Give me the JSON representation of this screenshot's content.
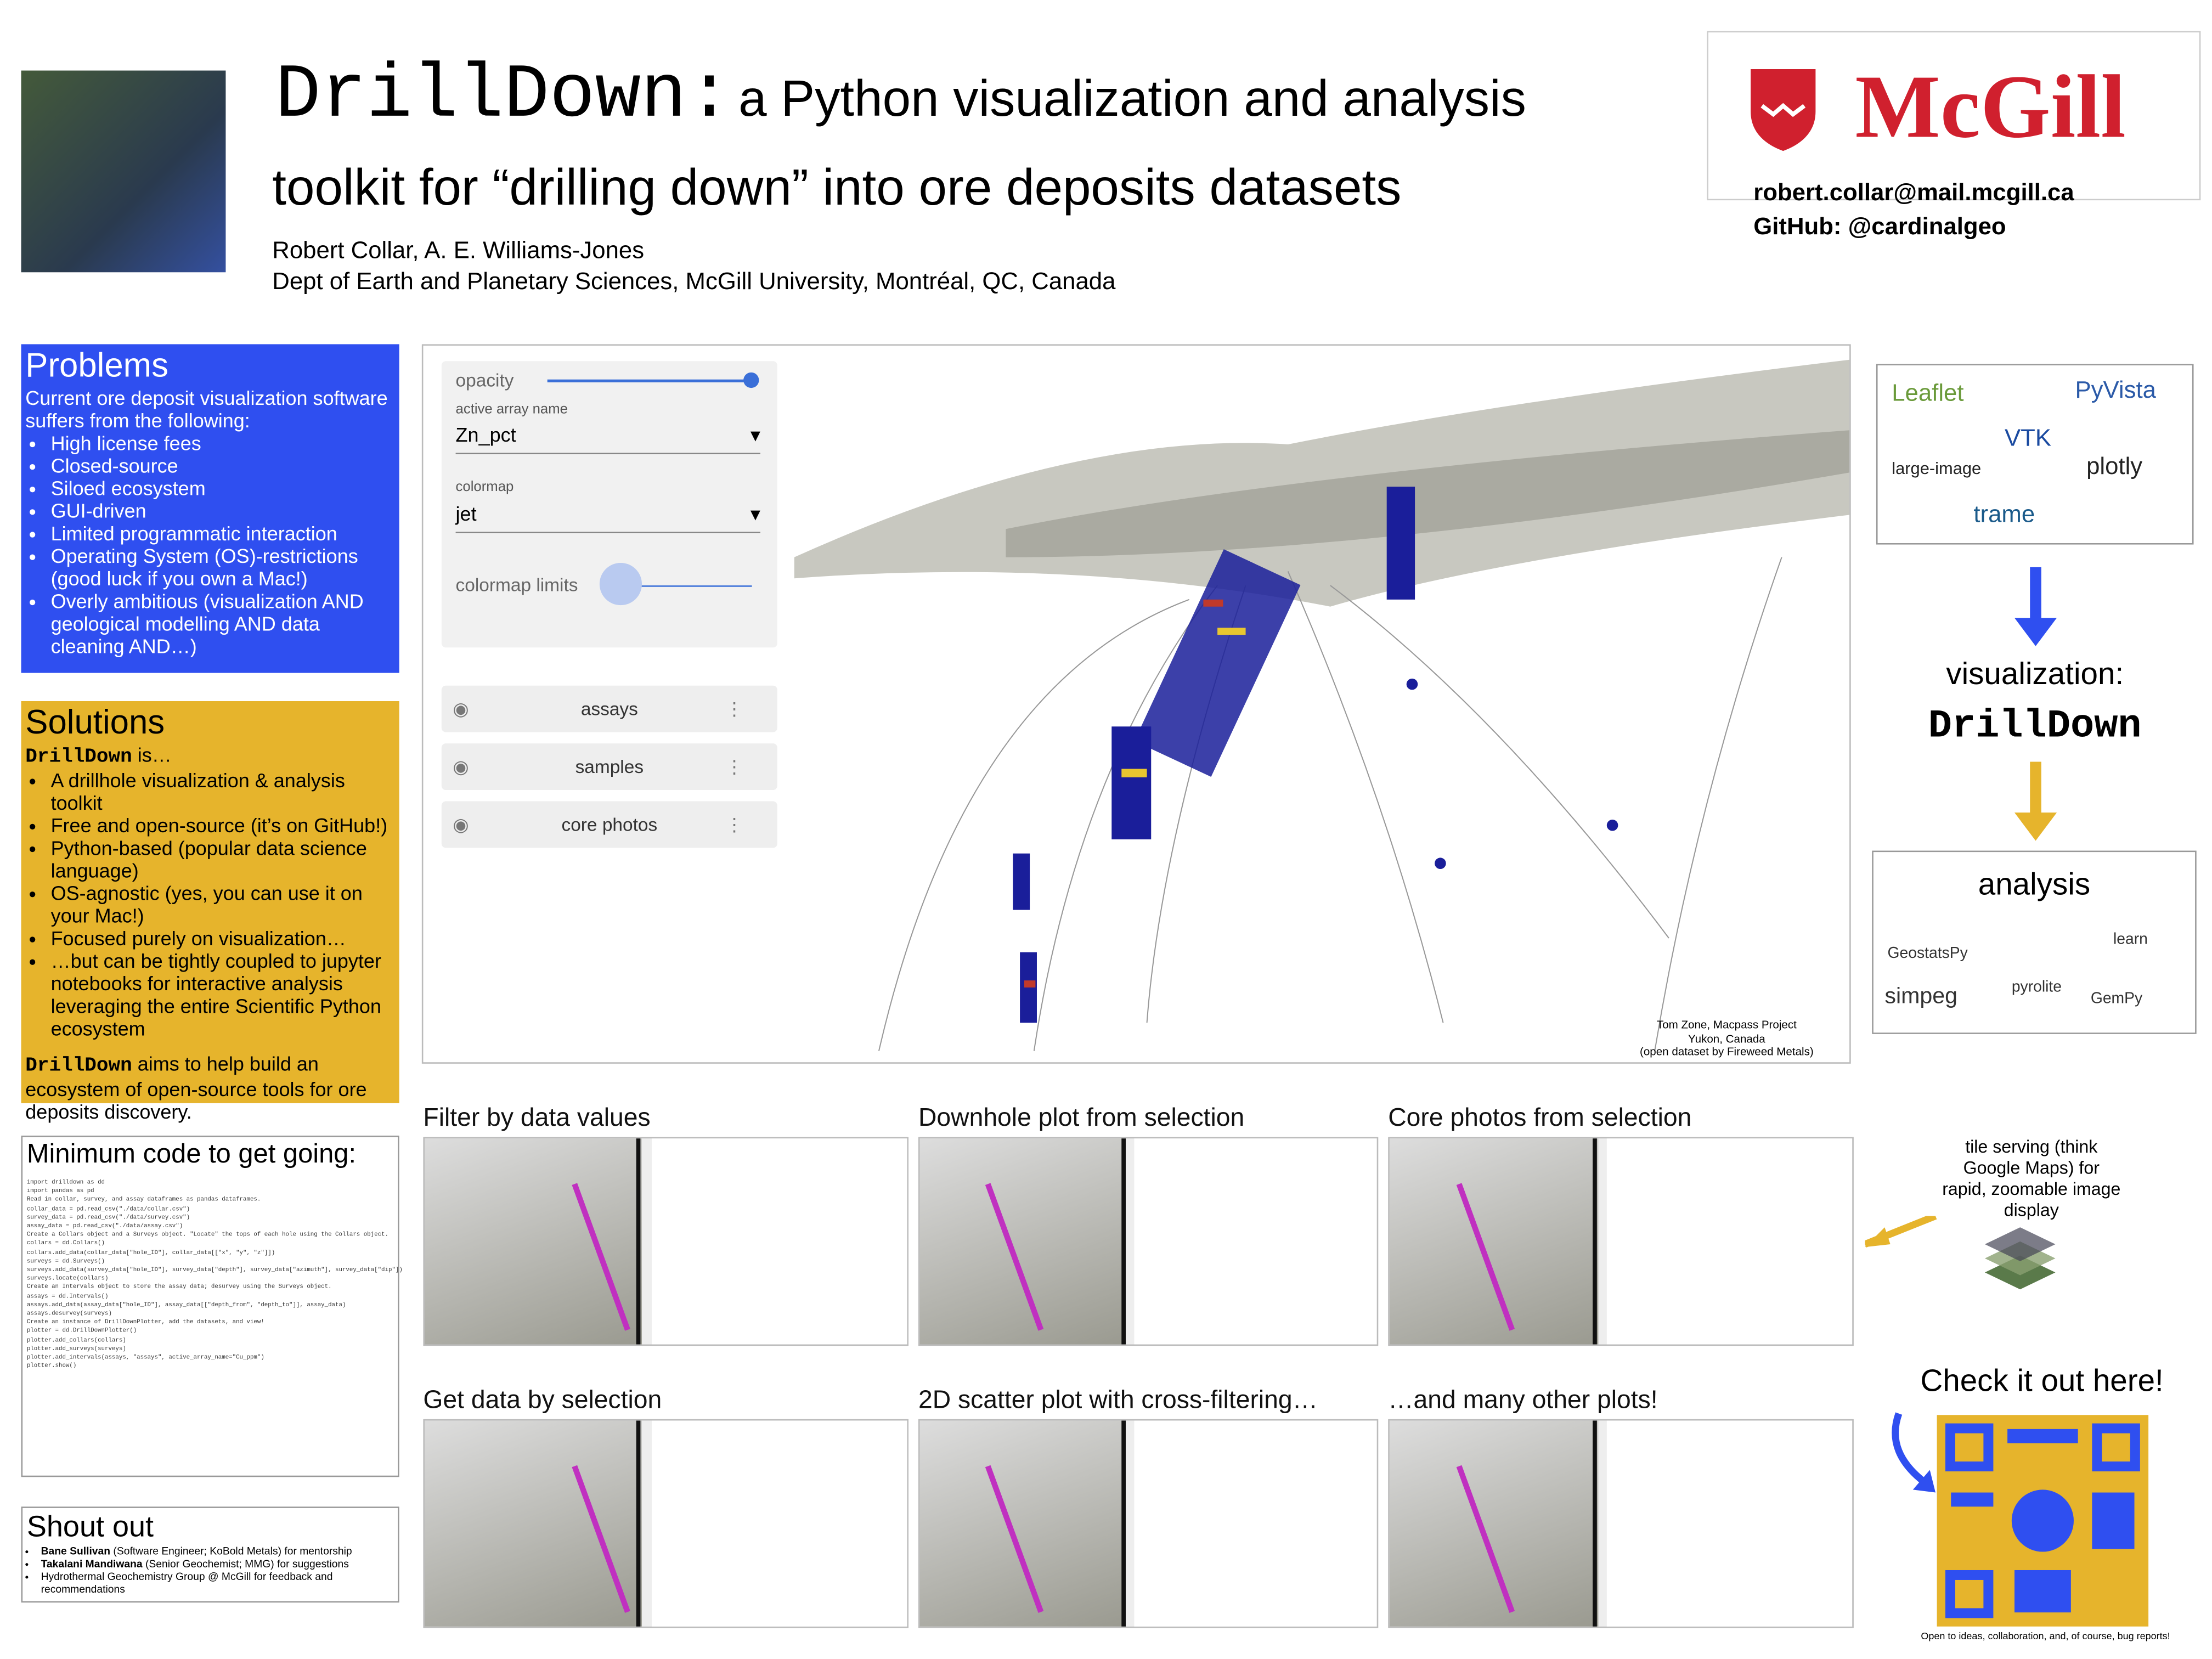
{
  "header": {
    "title_mono": "DrillDown:",
    "title_rest": "a Python visualization and analysis",
    "title_line2": "toolkit for “drilling down” into ore deposits datasets",
    "authors": "Robert Collar, A. E. Williams-Jones",
    "affiliation": "Dept of Earth and Planetary Sciences, McGill University, Montréal, QC, Canada",
    "logo": "McGill",
    "email": "robert.collar@mail.mcgill.ca",
    "github": "GitHub: @cardinalgeo"
  },
  "problems": {
    "heading": "Problems",
    "intro": "Current ore deposit visualization software suffers from the following:",
    "items": [
      "High license fees",
      "Closed-source",
      "Siloed ecosystem",
      "GUI-driven",
      "Limited programmatic interaction",
      "Operating System (OS)-restrictions (good luck if you own a Mac!)",
      "Overly ambitious (visualization AND geological modelling AND data cleaning AND…)"
    ]
  },
  "solutions": {
    "heading": "Solutions",
    "lead_name": "DrillDown",
    "lead_rest": "is…",
    "items": [
      "A drillhole visualization & analysis toolkit",
      "Free and open-source (it’s on GitHub!)",
      "Python-based (popular data science language)",
      "OS-agnostic (yes, you can use it on your Mac!)",
      "Focused purely on visualization…",
      "…but can be tightly coupled to jupyter notebooks for interactive analysis leveraging the entire Scientific Python ecosystem"
    ],
    "closing_name": "DrillDown",
    "closing_rest": "aims to help build an ecosystem of open-source tools for ore deposits discovery."
  },
  "code": {
    "heading": "Minimum code to get going:",
    "lines": [
      "import drilldown as dd",
      "import pandas as pd",
      "Read in collar, survey, and assay dataframes as pandas dataframes.",
      "collar_data = pd.read_csv(\"./data/collar.csv\")",
      "survey_data = pd.read_csv(\"./data/survey.csv\")",
      "assay_data = pd.read_csv(\"./data/assay.csv\")",
      "Create a Collars object and a Surveys object. \"Locate\" the tops of each hole using the Collars object.",
      "collars = dd.Collars()",
      "collars.add_data(collar_data[\"hole_ID\"], collar_data[[\"x\", \"y\", \"z\"]])",
      "surveys = dd.Surveys()",
      "surveys.add_data(survey_data[\"hole_ID\"], survey_data[\"depth\"], survey_data[\"azimuth\"], survey_data[\"dip\"])",
      "surveys.locate(collars)",
      "Create an Intervals object to store the assay data; desurvey using the Surveys object.",
      "assays = dd.Intervals()",
      "assays.add_data(assay_data[\"hole_ID\"], assay_data[[\"depth_from\", \"depth_to\"]], assay_data)",
      "assays.desurvey(surveys)",
      "Create an instance of DrillDownPlotter, add the datasets, and view!",
      "plotter = dd.DrillDownPlotter()",
      "plotter.add_collars(collars)",
      "plotter.add_surveys(surveys)",
      "plotter.add_intervals(assays, \"assays\", active_array_name=\"Cu_ppm\")",
      "plotter.show()"
    ]
  },
  "shoutout": {
    "heading": "Shout out",
    "items": [
      {
        "name": "Bane Sullivan",
        "rest": "(Software Engineer; KoBold Metals) for mentorship"
      },
      {
        "name": "Takalani Mandiwana",
        "rest": "(Senior Geochemist; MMG) for suggestions"
      },
      {
        "name": "",
        "rest": "Hydrothermal Geochemistry Group @ McGill for feedback and recommendations"
      }
    ]
  },
  "viewer": {
    "opacity": "opacity",
    "array_label": "active array name",
    "array_value": "Zn_pct",
    "colormap_label": "colormap",
    "colormap_value": "jet",
    "limits": "colormap limits",
    "layers": [
      "assays",
      "samples",
      "core photos"
    ],
    "caption": [
      "Tom Zone, Macpass Project",
      "Yukon, Canada",
      "(open dataset by Fireweed Metals)"
    ]
  },
  "panels": [
    "Filter by data values",
    "Downhole plot from selection",
    "Core photos from selection",
    "Get data by selection",
    "2D scatter plot with cross-filtering…",
    "…and many other plots!"
  ],
  "right": {
    "viz_logos": [
      "Leaflet",
      "PyVista",
      "VTK",
      "large-image",
      "plotly",
      "trame"
    ],
    "viz_label": "visualization:",
    "viz_name": "DrillDown",
    "analysis": "analysis",
    "analysis_logos": [
      "GeostatsPy",
      "pyrolite",
      "learn",
      "simpeg",
      "GemPy"
    ],
    "tile_note": "tile serving (think Google Maps) for rapid, zoomable image display",
    "check": "Check it out here!",
    "footer": "Open to ideas, collaboration, and, of course, bug reports!"
  }
}
